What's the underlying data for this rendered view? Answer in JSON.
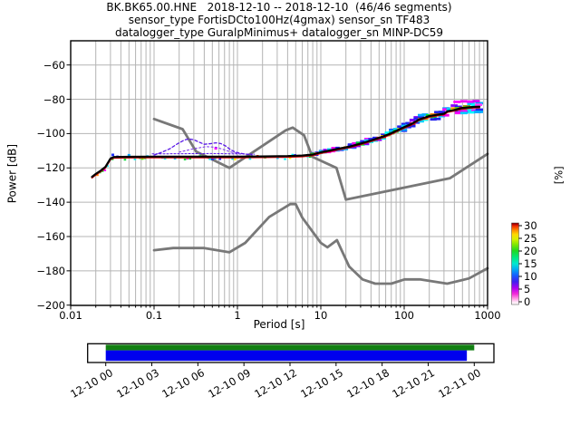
{
  "title": {
    "line1": "BK.BK65.00.HNE   2018-12-10 -- 2018-12-10  (46/46 segments)",
    "line2": "sensor_type FortisDCto100Hz(4gmax) sensor_sn TF483",
    "line3": "datalogger_type GuralpMinimus+ datalogger_sn MINP-DC59"
  },
  "axes": {
    "xlabel": "Period [s]",
    "ylabel": "Power [dB]",
    "x_tick_labels": [
      "0.01",
      "0.1",
      "1",
      "10",
      "100",
      "1000"
    ],
    "x_tick_values": [
      0.01,
      0.1,
      1,
      10,
      100,
      1000
    ],
    "y_tick_labels": [
      "−60",
      "−80",
      "−100",
      "−120",
      "−140",
      "−160",
      "−180",
      "−200"
    ],
    "y_tick_values": [
      -60,
      -80,
      -100,
      -120,
      -140,
      -160,
      -180,
      -200
    ]
  },
  "colorbar_labels": {
    "label": "[%]",
    "tick_labels": [
      "0",
      "5",
      "10",
      "15",
      "20",
      "25",
      "30"
    ]
  },
  "coverage_labels": {
    "tick_labels": [
      "12-10 00",
      "12-10 03",
      "12-10 06",
      "12-10 09",
      "12-10 12",
      "12-10 15",
      "12-10 18",
      "12-10 21",
      "12-11 00"
    ]
  },
  "chart_data": {
    "type": "heatmap",
    "title": "BK.BK65.00.HNE   2018-12-10 -- 2018-12-10  (46/46 segments)",
    "xlabel": "Period [s]",
    "ylabel": "Power [dB]",
    "xscale": "log",
    "xlim": [
      0.01,
      1000
    ],
    "ylim": [
      -200,
      -46
    ],
    "grid": true,
    "grid_color": "#b4b4b4",
    "frame_color": "#000000",
    "series": [
      {
        "name": "peterson-high-noise-model",
        "color": "#787878",
        "width": 2.8,
        "points": [
          [
            0.1,
            -91.5
          ],
          [
            0.22,
            -97.4
          ],
          [
            0.32,
            -110.5
          ],
          [
            0.8,
            -120.0
          ],
          [
            3.8,
            -98.1
          ],
          [
            4.6,
            -96.5
          ],
          [
            6.3,
            -101.0
          ],
          [
            7.9,
            -113.5
          ],
          [
            15.4,
            -120.0
          ],
          [
            20,
            -138.5
          ],
          [
            354.8,
            -126.0
          ],
          [
            1000,
            -111.8
          ]
        ]
      },
      {
        "name": "peterson-low-noise-model",
        "color": "#787878",
        "width": 2.8,
        "points": [
          [
            0.1,
            -168.0
          ],
          [
            0.17,
            -166.7
          ],
          [
            0.4,
            -166.7
          ],
          [
            0.8,
            -169.2
          ],
          [
            1.24,
            -163.7
          ],
          [
            2.4,
            -148.6
          ],
          [
            4.3,
            -141.1
          ],
          [
            5.0,
            -141.1
          ],
          [
            6.0,
            -149.0
          ],
          [
            10.0,
            -163.7
          ],
          [
            12.0,
            -166.3
          ],
          [
            15.6,
            -162.1
          ],
          [
            21.9,
            -177.5
          ],
          [
            31.6,
            -185.0
          ],
          [
            45.0,
            -187.5
          ],
          [
            70.0,
            -187.5
          ],
          [
            101.0,
            -185.0
          ],
          [
            154.0,
            -185.0
          ],
          [
            328.0,
            -187.5
          ],
          [
            600.0,
            -184.4
          ],
          [
            1000,
            -178.5
          ]
        ]
      },
      {
        "name": "psd-mode-ridge",
        "color": "#000000",
        "width": 2.2,
        "underlay_color": "#d40000",
        "points": [
          [
            0.018,
            -125.2
          ],
          [
            0.02,
            -123.5
          ],
          [
            0.023,
            -121.5
          ],
          [
            0.026,
            -119.5
          ],
          [
            0.028,
            -117.0
          ],
          [
            0.03,
            -114.5
          ],
          [
            0.033,
            -113.6
          ],
          [
            0.05,
            -113.5
          ],
          [
            0.1,
            -113.4
          ],
          [
            0.3,
            -113.4
          ],
          [
            1,
            -113.4
          ],
          [
            2,
            -113.3
          ],
          [
            4,
            -113.1
          ],
          [
            6,
            -112.8
          ],
          [
            8,
            -112.2
          ],
          [
            10,
            -110.9
          ],
          [
            13,
            -109.8
          ],
          [
            17,
            -108.6
          ],
          [
            22,
            -107.6
          ],
          [
            30,
            -105.8
          ],
          [
            40,
            -104.0
          ],
          [
            55,
            -101.8
          ],
          [
            70,
            -99.8
          ],
          [
            85,
            -97.8
          ],
          [
            100,
            -96.2
          ],
          [
            120,
            -94.6
          ],
          [
            150,
            -91.8
          ],
          [
            200,
            -89.8
          ],
          [
            250,
            -89.0
          ],
          [
            300,
            -88.4
          ],
          [
            330,
            -87.0
          ],
          [
            400,
            -86.2
          ],
          [
            480,
            -85.2
          ],
          [
            560,
            -84.8
          ],
          [
            700,
            -84.4
          ],
          [
            800,
            -84.3
          ]
        ]
      },
      {
        "name": "secondary-mode-envelope",
        "color": "#5a18e8",
        "width": 1.3,
        "dash": "3 2.5",
        "points": [
          [
            0.1,
            -112.5
          ],
          [
            0.125,
            -110.8
          ],
          [
            0.155,
            -108.8
          ],
          [
            0.19,
            -106.0
          ],
          [
            0.23,
            -103.8
          ],
          [
            0.26,
            -103.1
          ],
          [
            0.3,
            -103.6
          ],
          [
            0.34,
            -104.8
          ],
          [
            0.4,
            -106.2
          ],
          [
            0.47,
            -105.9
          ],
          [
            0.55,
            -105.4
          ],
          [
            0.63,
            -105.8
          ],
          [
            0.72,
            -107.2
          ],
          [
            0.82,
            -109.3
          ],
          [
            0.95,
            -110.9
          ],
          [
            1.2,
            -111.9
          ],
          [
            1.5,
            -112.4
          ]
        ]
      },
      {
        "name": "secondary-mode-envelope-inner",
        "color": "#7a2cf0",
        "width": 1.0,
        "dash": "2 2.5",
        "points": [
          [
            0.2,
            -110.8
          ],
          [
            0.3,
            -108.8
          ],
          [
            0.42,
            -107.6
          ],
          [
            0.55,
            -107.9
          ],
          [
            0.68,
            -109.3
          ],
          [
            0.85,
            -110.9
          ],
          [
            1.05,
            -111.7
          ]
        ]
      },
      {
        "name": "distribution-upper-edge",
        "color": "#5a18e8",
        "width": 1.0,
        "dash": "2 2",
        "points": [
          [
            0.095,
            -111.8
          ],
          [
            0.5,
            -111.6
          ],
          [
            1.6,
            -112.0
          ]
        ]
      }
    ],
    "histogram": {
      "palette_outer": [
        "#ff00ff",
        "#2222ee",
        "#8800ff",
        "#ee00ee",
        "#00aaff"
      ],
      "palette_mid": [
        "#00ccff",
        "#00ffff",
        "#00dd33",
        "#2222ee"
      ],
      "palette_inner": [
        "#00dd33",
        "#ffff00",
        "#ff8800",
        "#ee1100",
        "#66ee00"
      ],
      "extra_blocks": [
        [
          430,
          -81.5,
          "#ff00ff"
        ],
        [
          520,
          -81.2,
          "#ee00ee"
        ],
        [
          620,
          -81.4,
          "#ff00ff"
        ],
        [
          730,
          -81.1,
          "#cc00ff"
        ],
        [
          780,
          -83.2,
          "#ff44ff"
        ],
        [
          520,
          -88.0,
          "#00ccff"
        ],
        [
          640,
          -87.6,
          "#00ffff"
        ],
        [
          760,
          -87.3,
          "#00aaff"
        ],
        [
          0.55,
          -108.6,
          "#ff00ff"
        ],
        [
          0.032,
          -112.4,
          "#2233ff"
        ],
        [
          0.05,
          -112.6,
          "#00aaff"
        ]
      ]
    },
    "colorbar": {
      "label": "[%]",
      "min": 0,
      "max": 30,
      "ticks": [
        0,
        5,
        10,
        15,
        20,
        25,
        30
      ],
      "gradient": [
        [
          0.0,
          "#ffffff"
        ],
        [
          0.03,
          "#ffe6f6"
        ],
        [
          0.08,
          "#ff8ae2"
        ],
        [
          0.13,
          "#f32ad8"
        ],
        [
          0.2,
          "#b000f0"
        ],
        [
          0.28,
          "#4020ee"
        ],
        [
          0.36,
          "#1560ff"
        ],
        [
          0.44,
          "#00b4f0"
        ],
        [
          0.5,
          "#00e8d0"
        ],
        [
          0.58,
          "#00e87a"
        ],
        [
          0.66,
          "#20d820"
        ],
        [
          0.74,
          "#86e800"
        ],
        [
          0.8,
          "#d8f000"
        ],
        [
          0.86,
          "#ffd800"
        ],
        [
          0.91,
          "#ff8c00"
        ],
        [
          0.96,
          "#f03000"
        ],
        [
          0.985,
          "#b00000"
        ],
        [
          1.0,
          "#7a0000"
        ]
      ]
    },
    "coverage": {
      "green_color": "#128012",
      "blue_color": "#0000ee",
      "green_frac": [
        0.0,
        1.0
      ],
      "blue_frac": [
        0.0,
        0.98
      ],
      "tick_labels": [
        "12-10 00",
        "12-10 03",
        "12-10 06",
        "12-10 09",
        "12-10 12",
        "12-10 15",
        "12-10 18",
        "12-10 21",
        "12-11 00"
      ]
    }
  }
}
